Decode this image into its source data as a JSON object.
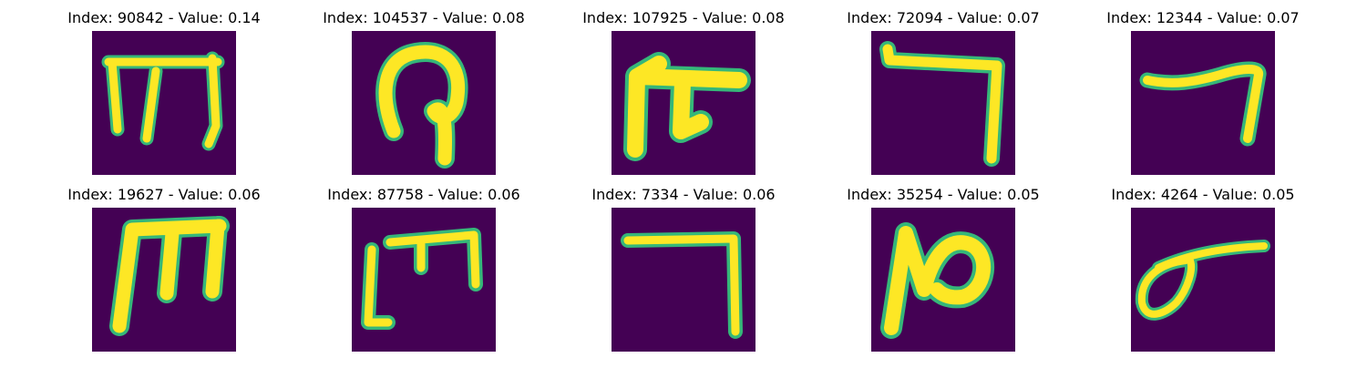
{
  "colors": {
    "background": "#440154",
    "stroke": "#fde725",
    "stroke_edge": "#35b779",
    "stroke_mid": "#21918c"
  },
  "items": [
    {
      "title": "Index: 90842 - Value: 0.14"
    },
    {
      "title": "Index: 104537 - Value: 0.08"
    },
    {
      "title": "Index: 107925 - Value: 0.08"
    },
    {
      "title": "Index: 72094 - Value: 0.07"
    },
    {
      "title": "Index: 12344 - Value: 0.07"
    },
    {
      "title": "Index: 19627 - Value: 0.06"
    },
    {
      "title": "Index: 87758 - Value: 0.06"
    },
    {
      "title": "Index: 7334 - Value: 0.06"
    },
    {
      "title": "Index: 35254 - Value: 0.05"
    },
    {
      "title": "Index: 4264 - Value: 0.05"
    }
  ]
}
